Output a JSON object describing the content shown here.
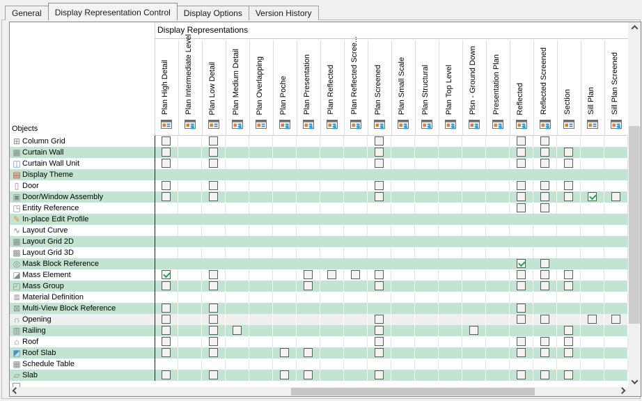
{
  "tabs": [
    {
      "label": "General",
      "active": false
    },
    {
      "label": "Display Representation Control",
      "active": true
    },
    {
      "label": "Display Options",
      "active": false
    },
    {
      "label": "Version History",
      "active": false
    }
  ],
  "colors": {
    "row_green": "#c4e4d2",
    "row_gray": "#efefef",
    "check_green": "#1da84c",
    "accent_orange": "#e07b39",
    "accent_blue": "#3a7abf",
    "person_blue": "#29a8e0"
  },
  "table": {
    "header_group_label": "Display Representations",
    "objects_label": "Objects",
    "columns": [
      {
        "label": "Plan High Detail",
        "person": false
      },
      {
        "label": "Plan Intermediate Level",
        "person": true
      },
      {
        "label": "Plan Low Detail",
        "person": false
      },
      {
        "label": "Plan Medium Detail",
        "person": true
      },
      {
        "label": "Plan Overlapping",
        "person": false
      },
      {
        "label": "Plan Poche",
        "person": true
      },
      {
        "label": "Plan Presentation",
        "person": true
      },
      {
        "label": "Plan Reflected",
        "person": true
      },
      {
        "label": "Plan Reflected Scree...",
        "person": true
      },
      {
        "label": "Plan Screened",
        "person": true
      },
      {
        "label": "Plan Small Scale",
        "person": true
      },
      {
        "label": "Plan Structural",
        "person": true
      },
      {
        "label": "Plan Top Level",
        "person": true
      },
      {
        "label": "Plsn - Ground Down",
        "person": true
      },
      {
        "label": "Presentation Plan",
        "person": true
      },
      {
        "label": "Reflected",
        "person": true
      },
      {
        "label": "Reflected Screened",
        "person": true
      },
      {
        "label": "Section",
        "person": false
      },
      {
        "label": "Sill Plan",
        "person": false
      },
      {
        "label": "Sill Plan Screened",
        "person": true
      }
    ],
    "rows": [
      {
        "label": "Column Grid",
        "glyph": "⊞",
        "icon_color": "#8a8a8a",
        "bg": "white",
        "solid": false,
        "checkboxes": [
          {
            "col": 1
          },
          {
            "col": 3
          },
          {
            "col": 10
          },
          {
            "col": 16
          },
          {
            "col": 17
          }
        ]
      },
      {
        "label": "Curtain Wall",
        "glyph": "▦",
        "icon_color": "#8a8a8a",
        "bg": "green",
        "solid": false,
        "checkboxes": [
          {
            "col": 1
          },
          {
            "col": 3
          },
          {
            "col": 10
          },
          {
            "col": 16
          },
          {
            "col": 17
          },
          {
            "col": 18
          }
        ]
      },
      {
        "label": "Curtain Wall Unit",
        "glyph": "◫",
        "icon_color": "#4d8fc9",
        "bg": "white",
        "solid": false,
        "checkboxes": [
          {
            "col": 1
          },
          {
            "col": 3
          },
          {
            "col": 10
          },
          {
            "col": 16
          },
          {
            "col": 17
          },
          {
            "col": 18
          }
        ]
      },
      {
        "label": "Display Theme",
        "glyph": "▤",
        "icon_color": "#cc4b37",
        "bg": "green",
        "solid": true,
        "checkboxes": []
      },
      {
        "label": "Door",
        "glyph": "▯",
        "icon_color": "#8a8a8a",
        "bg": "white",
        "solid": false,
        "checkboxes": [
          {
            "col": 1
          },
          {
            "col": 3
          },
          {
            "col": 10
          },
          {
            "col": 16
          },
          {
            "col": 17
          },
          {
            "col": 18
          }
        ]
      },
      {
        "label": "Door/Window Assembly",
        "glyph": "▣",
        "icon_color": "#8a8a8a",
        "bg": "green",
        "solid": false,
        "checkboxes": [
          {
            "col": 1
          },
          {
            "col": 3
          },
          {
            "col": 10
          },
          {
            "col": 16
          },
          {
            "col": 17
          },
          {
            "col": 18
          },
          {
            "col": 19,
            "checked": true
          },
          {
            "col": 20
          }
        ]
      },
      {
        "label": "Entity Reference",
        "glyph": "◳",
        "icon_color": "#8a8a8a",
        "bg": "white",
        "solid": false,
        "checkboxes": [
          {
            "col": 16
          },
          {
            "col": 17
          }
        ]
      },
      {
        "label": "In-place Edit Profile",
        "glyph": "✎",
        "icon_color": "#d99a2b",
        "bg": "green",
        "solid": true,
        "checkboxes": []
      },
      {
        "label": "Layout Curve",
        "glyph": "∿",
        "icon_color": "#8a8a8a",
        "bg": "white",
        "solid": false,
        "checkboxes": []
      },
      {
        "label": "Layout Grid 2D",
        "glyph": "▦",
        "icon_color": "#8a8a8a",
        "bg": "green",
        "solid": true,
        "checkboxes": []
      },
      {
        "label": "Layout Grid 3D",
        "glyph": "▩",
        "icon_color": "#8a8a8a",
        "bg": "white",
        "solid": false,
        "checkboxes": []
      },
      {
        "label": "Mask Block Reference",
        "glyph": "◎",
        "icon_color": "#8a8a8a",
        "bg": "green",
        "solid": true,
        "checkboxes": [
          {
            "col": 16,
            "checked": true
          },
          {
            "col": 17
          }
        ]
      },
      {
        "label": "Mass Element",
        "glyph": "◪",
        "icon_color": "#8a8a8a",
        "bg": "white",
        "solid": false,
        "checkboxes": [
          {
            "col": 1,
            "checked": true
          },
          {
            "col": 3
          },
          {
            "col": 7
          },
          {
            "col": 8
          },
          {
            "col": 9
          },
          {
            "col": 10
          },
          {
            "col": 16
          },
          {
            "col": 17
          },
          {
            "col": 18
          }
        ]
      },
      {
        "label": "Mass Group",
        "glyph": "◰",
        "icon_color": "#8a8a8a",
        "bg": "green",
        "solid": false,
        "checkboxes": [
          {
            "col": 1
          },
          {
            "col": 3
          },
          {
            "col": 7
          },
          {
            "col": 10
          },
          {
            "col": 16
          },
          {
            "col": 17
          },
          {
            "col": 18
          }
        ]
      },
      {
        "label": "Material Definition",
        "glyph": "≣",
        "icon_color": "#8a8a8a",
        "bg": "white",
        "solid": false,
        "checkboxes": []
      },
      {
        "label": "Multi-View Block Reference",
        "glyph": "⊠",
        "icon_color": "#8a8a8a",
        "bg": "green",
        "solid": false,
        "checkboxes": [
          {
            "col": 1
          },
          {
            "col": 3
          },
          {
            "col": 16
          }
        ]
      },
      {
        "label": "Opening",
        "glyph": "∩",
        "icon_color": "#8a8a8a",
        "bg": "gray",
        "solid": false,
        "checkboxes": [
          {
            "col": 1
          },
          {
            "col": 3
          },
          {
            "col": 10
          },
          {
            "col": 16
          },
          {
            "col": 17
          },
          {
            "col": 19
          },
          {
            "col": 20
          }
        ]
      },
      {
        "label": "Railing",
        "glyph": "▥",
        "icon_color": "#8a8a8a",
        "bg": "green",
        "solid": false,
        "checkboxes": [
          {
            "col": 1
          },
          {
            "col": 3
          },
          {
            "col": 4
          },
          {
            "col": 10
          },
          {
            "col": 14
          },
          {
            "col": 18
          }
        ]
      },
      {
        "label": "Roof",
        "glyph": "⌂",
        "icon_color": "#8a8a8a",
        "bg": "white",
        "solid": false,
        "checkboxes": [
          {
            "col": 1
          },
          {
            "col": 3
          },
          {
            "col": 10
          },
          {
            "col": 16
          },
          {
            "col": 17
          },
          {
            "col": 18
          }
        ]
      },
      {
        "label": "Roof Slab",
        "glyph": "◩",
        "icon_color": "#4d8fc9",
        "bg": "green",
        "solid": false,
        "checkboxes": [
          {
            "col": 1
          },
          {
            "col": 3
          },
          {
            "col": 6
          },
          {
            "col": 7
          },
          {
            "col": 10
          },
          {
            "col": 16
          },
          {
            "col": 17
          },
          {
            "col": 18
          }
        ]
      },
      {
        "label": "Schedule Table",
        "glyph": "▦",
        "icon_color": "#8a8a8a",
        "bg": "white",
        "solid": false,
        "checkboxes": []
      },
      {
        "label": "Slab",
        "glyph": "▱",
        "icon_color": "#8a8a8a",
        "bg": "green",
        "solid": false,
        "checkboxes": [
          {
            "col": 1
          },
          {
            "col": 3
          },
          {
            "col": 6
          },
          {
            "col": 7
          },
          {
            "col": 10
          },
          {
            "col": 16
          },
          {
            "col": 17
          },
          {
            "col": 18
          }
        ]
      }
    ]
  },
  "scrollbars": {
    "vertical": {
      "up": "chevron-up-icon",
      "down": "chevron-down-icon"
    },
    "horizontal": {
      "left": "chevron-left-icon",
      "right": "chevron-right-icon"
    }
  }
}
